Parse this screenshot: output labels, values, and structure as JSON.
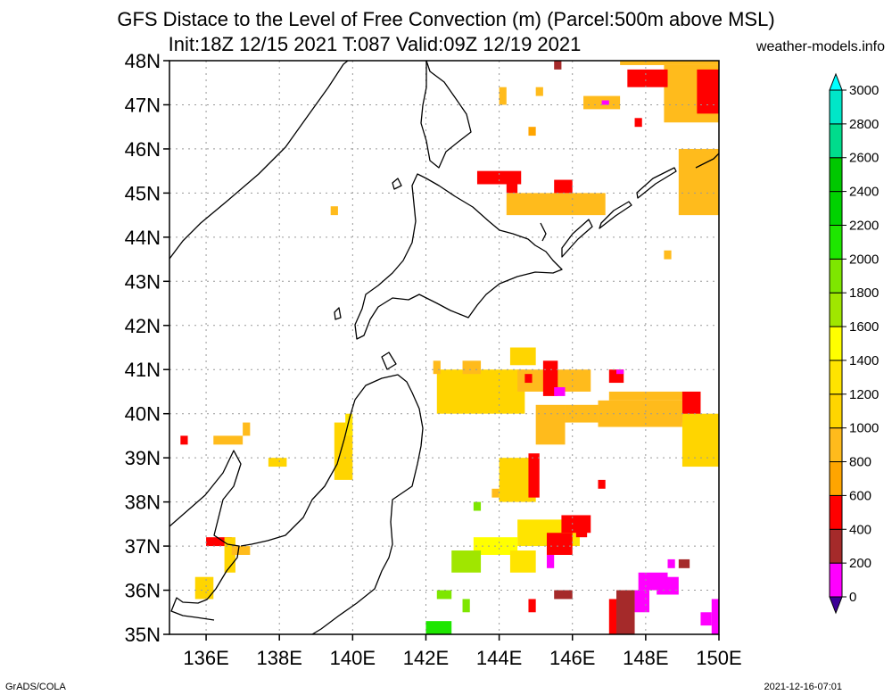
{
  "title_line1": "GFS Distace to the Level of Free Convection (m) (Parcel:500m above MSL)",
  "title_line2": "Init:18Z 12/15 2021 T:087 Valid:09Z 12/19 2021",
  "site": "weather-models.info",
  "footer_left": "GrADS/COLA",
  "footer_right": "2021-12-16-07:01",
  "chart_data": {
    "type": "heatmap",
    "title": "GFS Distace to the Level of Free Convection (m) (Parcel:500m above MSL)",
    "subtitle": "Init:18Z 12/15 2021 T:087 Valid:09Z 12/19 2021",
    "xlim": [
      135,
      150
    ],
    "ylim": [
      35,
      48
    ],
    "x_ticks": [
      136,
      138,
      140,
      142,
      144,
      146,
      148,
      150
    ],
    "x_tick_labels": [
      "136E",
      "138E",
      "140E",
      "142E",
      "144E",
      "146E",
      "148E",
      "150E"
    ],
    "y_ticks": [
      35,
      36,
      37,
      38,
      39,
      40,
      41,
      42,
      43,
      44,
      45,
      46,
      47,
      48
    ],
    "y_tick_labels": [
      "35N",
      "36N",
      "37N",
      "38N",
      "39N",
      "40N",
      "41N",
      "42N",
      "43N",
      "44N",
      "45N",
      "46N",
      "47N",
      "48N"
    ],
    "grid": true,
    "colorbar": {
      "levels": [
        0,
        200,
        400,
        600,
        800,
        1000,
        1200,
        1400,
        1600,
        1800,
        2000,
        2200,
        2400,
        2600,
        2800,
        3000
      ],
      "colors": [
        "#3c0096",
        "#ff00ff",
        "#a52a2a",
        "#ff0000",
        "#ffa500",
        "#ffbb1c",
        "#ffd500",
        "#ffe400",
        "#ffff00",
        "#a0e600",
        "#7ee600",
        "#1ee600",
        "#00d200",
        "#00c800",
        "#00dc8c",
        "#00e6c8",
        "#00ffff"
      ]
    },
    "cells": [
      {
        "lon": 147.3,
        "lat": 47.9,
        "lon2": 150.0,
        "lat2": 48.0,
        "v": 900
      },
      {
        "lon": 148.5,
        "lat": 46.6,
        "lon2": 150.0,
        "lat2": 47.9,
        "v": 850
      },
      {
        "lon": 149.4,
        "lat": 46.8,
        "lon2": 150.0,
        "lat2": 47.8,
        "v": 500
      },
      {
        "lon": 147.5,
        "lat": 47.4,
        "lon2": 148.6,
        "lat2": 47.8,
        "v": 500
      },
      {
        "lon": 146.3,
        "lat": 46.9,
        "lon2": 147.3,
        "lat2": 47.2,
        "v": 900
      },
      {
        "lon": 146.8,
        "lat": 47.0,
        "lon2": 147.0,
        "lat2": 47.1,
        "v": 150
      },
      {
        "lon": 147.7,
        "lat": 46.5,
        "lon2": 147.9,
        "lat2": 46.7,
        "v": 500
      },
      {
        "lon": 145.5,
        "lat": 47.8,
        "lon2": 145.7,
        "lat2": 48.0,
        "v": 300
      },
      {
        "lon": 144.0,
        "lat": 47.0,
        "lon2": 144.2,
        "lat2": 47.4,
        "v": 900
      },
      {
        "lon": 145.0,
        "lat": 47.2,
        "lon2": 145.2,
        "lat2": 47.4,
        "v": 900
      },
      {
        "lon": 144.8,
        "lat": 46.3,
        "lon2": 145.0,
        "lat2": 46.5,
        "v": 700
      },
      {
        "lon": 148.9,
        "lat": 44.5,
        "lon2": 150.0,
        "lat2": 46.0,
        "v": 900
      },
      {
        "lon": 143.4,
        "lat": 45.2,
        "lon2": 144.6,
        "lat2": 45.5,
        "v": 550
      },
      {
        "lon": 144.2,
        "lat": 45.0,
        "lon2": 144.5,
        "lat2": 45.2,
        "v": 550
      },
      {
        "lon": 144.2,
        "lat": 44.5,
        "lon2": 146.9,
        "lat2": 45.0,
        "v": 900
      },
      {
        "lon": 145.5,
        "lat": 45.0,
        "lon2": 146.0,
        "lat2": 45.3,
        "v": 550
      },
      {
        "lon": 139.4,
        "lat": 44.5,
        "lon2": 139.6,
        "lat2": 44.7,
        "v": 900
      },
      {
        "lon": 148.5,
        "lat": 43.5,
        "lon2": 148.7,
        "lat2": 43.7,
        "v": 900
      },
      {
        "lon": 142.3,
        "lat": 40.0,
        "lon2": 144.7,
        "lat2": 41.0,
        "v": 1050
      },
      {
        "lon": 142.2,
        "lat": 40.9,
        "lon2": 142.4,
        "lat2": 41.2,
        "v": 900
      },
      {
        "lon": 143.0,
        "lat": 40.9,
        "lon2": 143.5,
        "lat2": 41.2,
        "v": 900
      },
      {
        "lon": 144.3,
        "lat": 41.1,
        "lon2": 145.0,
        "lat2": 41.5,
        "v": 1100
      },
      {
        "lon": 144.5,
        "lat": 40.5,
        "lon2": 146.5,
        "lat2": 41.0,
        "v": 900
      },
      {
        "lon": 144.7,
        "lat": 40.7,
        "lon2": 144.9,
        "lat2": 40.9,
        "v": 500
      },
      {
        "lon": 145.2,
        "lat": 40.4,
        "lon2": 145.6,
        "lat2": 41.2,
        "v": 500
      },
      {
        "lon": 145.5,
        "lat": 40.4,
        "lon2": 145.8,
        "lat2": 40.6,
        "v": 150
      },
      {
        "lon": 147.0,
        "lat": 40.3,
        "lon2": 149.5,
        "lat2": 40.5,
        "v": 800
      },
      {
        "lon": 146.7,
        "lat": 39.7,
        "lon2": 149.0,
        "lat2": 40.3,
        "v": 950
      },
      {
        "lon": 147.0,
        "lat": 40.7,
        "lon2": 147.4,
        "lat2": 41.0,
        "v": 500
      },
      {
        "lon": 147.2,
        "lat": 40.9,
        "lon2": 147.4,
        "lat2": 41.0,
        "v": 150
      },
      {
        "lon": 149.0,
        "lat": 39.8,
        "lon2": 149.5,
        "lat2": 40.5,
        "v": 500
      },
      {
        "lon": 149.0,
        "lat": 38.8,
        "lon2": 150.0,
        "lat2": 40.0,
        "v": 1050
      },
      {
        "lon": 145.8,
        "lat": 39.8,
        "lon2": 146.7,
        "lat2": 40.2,
        "v": 900
      },
      {
        "lon": 145.0,
        "lat": 39.3,
        "lon2": 145.8,
        "lat2": 40.2,
        "v": 950
      },
      {
        "lon": 144.0,
        "lat": 38.0,
        "lon2": 145.0,
        "lat2": 39.0,
        "v": 1000
      },
      {
        "lon": 144.8,
        "lat": 38.1,
        "lon2": 145.1,
        "lat2": 39.1,
        "v": 550
      },
      {
        "lon": 143.8,
        "lat": 38.1,
        "lon2": 144.0,
        "lat2": 38.3,
        "v": 900
      },
      {
        "lon": 146.7,
        "lat": 38.3,
        "lon2": 146.9,
        "lat2": 38.5,
        "v": 550
      },
      {
        "lon": 144.5,
        "lat": 37.0,
        "lon2": 146.2,
        "lat2": 37.6,
        "v": 1300
      },
      {
        "lon": 145.3,
        "lat": 36.8,
        "lon2": 146.0,
        "lat2": 37.3,
        "v": 500
      },
      {
        "lon": 145.7,
        "lat": 37.3,
        "lon2": 146.5,
        "lat2": 37.7,
        "v": 550
      },
      {
        "lon": 146.1,
        "lat": 37.2,
        "lon2": 146.4,
        "lat2": 37.6,
        "v": 400
      },
      {
        "lon": 143.3,
        "lat": 36.8,
        "lon2": 144.5,
        "lat2": 37.2,
        "v": 1550
      },
      {
        "lon": 142.7,
        "lat": 36.4,
        "lon2": 143.5,
        "lat2": 36.9,
        "v": 1700
      },
      {
        "lon": 144.3,
        "lat": 36.4,
        "lon2": 145.0,
        "lat2": 36.9,
        "v": 1300
      },
      {
        "lon": 143.3,
        "lat": 37.8,
        "lon2": 143.5,
        "lat2": 38.0,
        "v": 1800
      },
      {
        "lon": 145.3,
        "lat": 36.5,
        "lon2": 145.5,
        "lat2": 36.8,
        "v": 150
      },
      {
        "lon": 147.8,
        "lat": 36.0,
        "lon2": 148.6,
        "lat2": 36.4,
        "v": 50
      },
      {
        "lon": 148.3,
        "lat": 35.9,
        "lon2": 148.9,
        "lat2": 36.3,
        "v": 150
      },
      {
        "lon": 148.9,
        "lat": 36.5,
        "lon2": 149.2,
        "lat2": 36.7,
        "v": 350
      },
      {
        "lon": 148.6,
        "lat": 36.5,
        "lon2": 148.8,
        "lat2": 36.7,
        "v": 150
      },
      {
        "lon": 147.7,
        "lat": 35.5,
        "lon2": 148.1,
        "lat2": 36.0,
        "v": 150
      },
      {
        "lon": 147.2,
        "lat": 35.0,
        "lon2": 147.7,
        "lat2": 36.0,
        "v": 350
      },
      {
        "lon": 147.0,
        "lat": 35.0,
        "lon2": 147.2,
        "lat2": 35.8,
        "v": 550
      },
      {
        "lon": 145.5,
        "lat": 35.8,
        "lon2": 146.0,
        "lat2": 36.0,
        "v": 350
      },
      {
        "lon": 144.8,
        "lat": 35.5,
        "lon2": 145.0,
        "lat2": 35.8,
        "v": 500
      },
      {
        "lon": 149.5,
        "lat": 35.2,
        "lon2": 149.8,
        "lat2": 35.5,
        "v": 50
      },
      {
        "lon": 149.8,
        "lat": 35.0,
        "lon2": 150.0,
        "lat2": 35.8,
        "v": 150
      },
      {
        "lon": 142.3,
        "lat": 35.8,
        "lon2": 142.7,
        "lat2": 36.0,
        "v": 1800
      },
      {
        "lon": 143.0,
        "lat": 35.5,
        "lon2": 143.2,
        "lat2": 35.8,
        "v": 1800
      },
      {
        "lon": 142.0,
        "lat": 35.0,
        "lon2": 142.7,
        "lat2": 35.3,
        "v": 2100
      },
      {
        "lon": 139.5,
        "lat": 38.5,
        "lon2": 140.0,
        "lat2": 39.8,
        "v": 1000
      },
      {
        "lon": 139.8,
        "lat": 39.5,
        "lon2": 140.0,
        "lat2": 40.0,
        "v": 1200
      },
      {
        "lon": 137.7,
        "lat": 38.8,
        "lon2": 138.2,
        "lat2": 39.0,
        "v": 1000
      },
      {
        "lon": 136.2,
        "lat": 39.3,
        "lon2": 137.0,
        "lat2": 39.5,
        "v": 900
      },
      {
        "lon": 137.0,
        "lat": 39.5,
        "lon2": 137.2,
        "lat2": 39.8,
        "v": 900
      },
      {
        "lon": 135.3,
        "lat": 39.3,
        "lon2": 135.5,
        "lat2": 39.5,
        "v": 500
      },
      {
        "lon": 136.0,
        "lat": 37.0,
        "lon2": 136.7,
        "lat2": 37.2,
        "v": 500
      },
      {
        "lon": 136.5,
        "lat": 36.4,
        "lon2": 136.8,
        "lat2": 37.2,
        "v": 1000
      },
      {
        "lon": 135.7,
        "lat": 35.8,
        "lon2": 136.2,
        "lat2": 36.3,
        "v": 1100
      },
      {
        "lon": 136.7,
        "lat": 36.8,
        "lon2": 137.2,
        "lat2": 37.0,
        "v": 900
      }
    ]
  }
}
